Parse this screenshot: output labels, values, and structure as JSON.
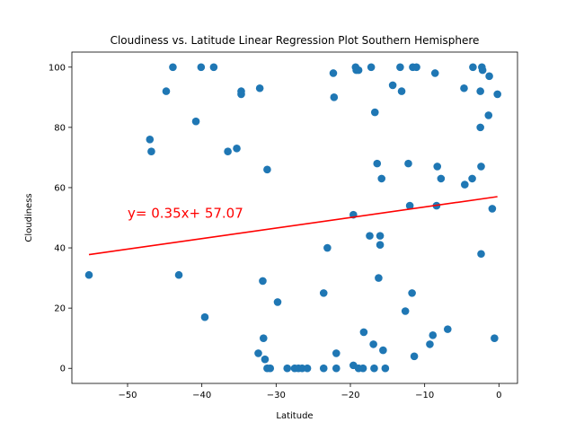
{
  "chart_data": {
    "type": "scatter",
    "title": "Cloudiness vs. Latitude Linear Regression Plot Southern Hemisphere",
    "xlabel": "Latitude",
    "ylabel": "Cloudiness",
    "xlim": [
      -57.5,
      2.5
    ],
    "ylim": [
      -5,
      105
    ],
    "xticks": [
      -50,
      -40,
      -30,
      -20,
      -10,
      0
    ],
    "yticks": [
      0,
      20,
      40,
      60,
      80,
      100
    ],
    "grid": false,
    "point_color": "#1f77b4",
    "series": [
      {
        "points": [
          [
            -55.2,
            31
          ],
          [
            -47.0,
            76
          ],
          [
            -46.8,
            72
          ],
          [
            -44.8,
            92
          ],
          [
            -43.9,
            100
          ],
          [
            -43.1,
            31
          ],
          [
            -40.8,
            82
          ],
          [
            -40.1,
            100
          ],
          [
            -39.6,
            17
          ],
          [
            -38.4,
            100
          ],
          [
            -36.5,
            72
          ],
          [
            -35.3,
            73
          ],
          [
            -34.7,
            92
          ],
          [
            -34.7,
            91
          ],
          [
            -32.4,
            5
          ],
          [
            -32.2,
            93
          ],
          [
            -31.8,
            29
          ],
          [
            -31.7,
            10
          ],
          [
            -31.5,
            3
          ],
          [
            -31.2,
            66
          ],
          [
            -31.2,
            0
          ],
          [
            -30.8,
            0
          ],
          [
            -29.8,
            22
          ],
          [
            -28.5,
            0
          ],
          [
            -27.5,
            0
          ],
          [
            -27.0,
            0
          ],
          [
            -26.5,
            0
          ],
          [
            -25.8,
            0
          ],
          [
            -23.6,
            25
          ],
          [
            -23.6,
            0
          ],
          [
            -23.1,
            40
          ],
          [
            -22.3,
            98
          ],
          [
            -22.2,
            90
          ],
          [
            -21.9,
            5
          ],
          [
            -21.9,
            0
          ],
          [
            -19.6,
            51
          ],
          [
            -19.6,
            1
          ],
          [
            -19.3,
            100
          ],
          [
            -19.2,
            99
          ],
          [
            -18.9,
            99
          ],
          [
            -18.9,
            0
          ],
          [
            -18.3,
            0
          ],
          [
            -18.2,
            12
          ],
          [
            -17.4,
            44
          ],
          [
            -17.2,
            100
          ],
          [
            -16.9,
            8
          ],
          [
            -16.8,
            0
          ],
          [
            -16.7,
            85
          ],
          [
            -16.4,
            68
          ],
          [
            -16.2,
            30
          ],
          [
            -16.0,
            44
          ],
          [
            -16.0,
            41
          ],
          [
            -15.8,
            63
          ],
          [
            -15.6,
            6
          ],
          [
            -15.3,
            0
          ],
          [
            -14.3,
            94
          ],
          [
            -13.3,
            100
          ],
          [
            -13.1,
            92
          ],
          [
            -12.6,
            19
          ],
          [
            -12.2,
            68
          ],
          [
            -12.0,
            54
          ],
          [
            -11.7,
            25
          ],
          [
            -11.6,
            100
          ],
          [
            -11.4,
            4
          ],
          [
            -11.1,
            100
          ],
          [
            -9.3,
            8
          ],
          [
            -8.9,
            11
          ],
          [
            -8.6,
            98
          ],
          [
            -8.4,
            54
          ],
          [
            -8.3,
            67
          ],
          [
            -7.8,
            63
          ],
          [
            -6.9,
            13
          ],
          [
            -4.7,
            93
          ],
          [
            -4.6,
            61
          ],
          [
            -3.6,
            63
          ],
          [
            -3.5,
            100
          ],
          [
            -2.5,
            92
          ],
          [
            -2.5,
            80
          ],
          [
            -2.4,
            67
          ],
          [
            -2.4,
            38
          ],
          [
            -2.3,
            100
          ],
          [
            -2.2,
            99
          ],
          [
            -1.4,
            84
          ],
          [
            -1.3,
            97
          ],
          [
            -0.9,
            53
          ],
          [
            -0.6,
            10
          ],
          [
            -0.2,
            91
          ]
        ]
      }
    ],
    "regression": {
      "slope": 0.35,
      "intercept": 57.07,
      "x_range": [
        -55.2,
        -0.2
      ],
      "color": "#ff0000",
      "equation_text": "y= 0.35x+ 57.07",
      "equation_anchor": [
        -50,
        50
      ]
    }
  }
}
